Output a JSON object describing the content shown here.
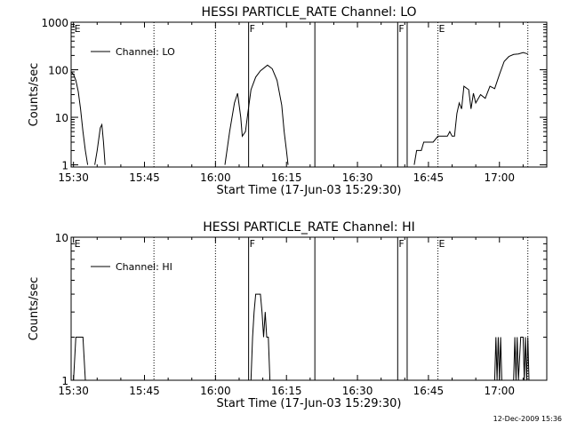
{
  "chart_data": [
    {
      "type": "line",
      "title": "HESSI PARTICLE_RATE Channel: LO",
      "xlabel": "Start Time (17-Jun-03 15:29:30)",
      "ylabel": "Counts/sec",
      "y_scale": "log",
      "ylim": [
        0.9,
        1000
      ],
      "xlim": [
        "15:29:30",
        "17:10:00"
      ],
      "x_ticks": [
        "15:30",
        "15:45",
        "16:00",
        "16:15",
        "16:30",
        "16:45",
        "17:00"
      ],
      "y_ticks": [
        {
          "value": 1,
          "label": "1"
        },
        {
          "value": 10,
          "label": "10"
        },
        {
          "value": 100,
          "label": "100"
        },
        {
          "value": 1000,
          "label": "1000"
        }
      ],
      "legend": {
        "label": "Channel: LO",
        "placement": "top-left"
      },
      "grid": false,
      "vertical_markers": [
        {
          "time": "16:07:00",
          "style": "solid",
          "label": "F"
        },
        {
          "time": "16:21:00",
          "style": "solid",
          "label": ""
        },
        {
          "time": "16:38:30",
          "style": "solid",
          "label": "F"
        },
        {
          "time": "16:40:30",
          "style": "solid",
          "label": ""
        },
        {
          "time": "15:30:00",
          "style": "none",
          "label": "E"
        },
        {
          "time": "15:47:00",
          "style": "dotted",
          "label": ""
        },
        {
          "time": "16:00:00",
          "style": "dotted",
          "label": ""
        },
        {
          "time": "16:47:00",
          "style": "dotted",
          "label": "E"
        },
        {
          "time": "17:06:00",
          "style": "dotted",
          "label": ""
        }
      ],
      "series": [
        {
          "name": "Channel: LO",
          "segments": [
            [
              [
                "15:29:30",
                90
              ],
              [
                "15:30:00",
                80
              ],
              [
                "15:30:30",
                60
              ],
              [
                "15:31:00",
                35
              ],
              [
                "15:31:30",
                15
              ],
              [
                "15:32:00",
                5
              ],
              [
                "15:32:30",
                2
              ],
              [
                "15:33:00",
                1
              ]
            ],
            [
              [
                "15:34:30",
                1
              ],
              [
                "15:35:00",
                2
              ],
              [
                "15:35:40",
                6
              ],
              [
                "15:36:00",
                7
              ],
              [
                "15:36:20",
                3
              ],
              [
                "15:36:40",
                1
              ]
            ],
            [
              [
                "16:02:00",
                1
              ],
              [
                "16:03:00",
                5
              ],
              [
                "16:04:00",
                20
              ],
              [
                "16:04:40",
                32
              ],
              [
                "16:05:20",
                10
              ],
              [
                "16:05:40",
                4
              ],
              [
                "16:06:20",
                5
              ],
              [
                "16:06:50",
                12
              ],
              [
                "16:07:30",
                38
              ],
              [
                "16:08:30",
                70
              ],
              [
                "16:09:30",
                95
              ],
              [
                "16:11:00",
                125
              ],
              [
                "16:12:00",
                105
              ],
              [
                "16:13:00",
                60
              ],
              [
                "16:14:00",
                18
              ],
              [
                "16:14:30",
                5
              ],
              [
                "16:15:00",
                2
              ],
              [
                "16:15:20",
                1
              ]
            ],
            [
              [
                "16:42:00",
                1
              ],
              [
                "16:42:30",
                2
              ],
              [
                "16:43:30",
                2
              ],
              [
                "16:44:00",
                3
              ],
              [
                "16:46:00",
                3
              ],
              [
                "16:47:00",
                4
              ],
              [
                "16:49:00",
                4
              ],
              [
                "16:49:30",
                5
              ],
              [
                "16:50:00",
                4
              ],
              [
                "16:50:30",
                4
              ],
              [
                "16:51:00",
                12
              ],
              [
                "16:51:30",
                20
              ],
              [
                "16:52:00",
                15
              ],
              [
                "16:52:30",
                45
              ],
              [
                "16:53:30",
                38
              ],
              [
                "16:54:00",
                15
              ],
              [
                "16:54:30",
                32
              ],
              [
                "16:55:00",
                20
              ],
              [
                "16:56:00",
                30
              ],
              [
                "16:57:00",
                25
              ],
              [
                "16:58:00",
                45
              ],
              [
                "16:59:00",
                40
              ],
              [
                "17:00:00",
                80
              ],
              [
                "17:01:00",
                150
              ],
              [
                "17:02:00",
                190
              ],
              [
                "17:03:00",
                210
              ],
              [
                "17:04:00",
                215
              ],
              [
                "17:05:00",
                230
              ],
              [
                "17:06:00",
                215
              ]
            ]
          ]
        }
      ]
    },
    {
      "type": "line",
      "title": "HESSI PARTICLE_RATE Channel: HI",
      "xlabel": "Start Time (17-Jun-03 15:29:30)",
      "ylabel": "Counts/sec",
      "y_scale": "log",
      "ylim": [
        1,
        10
      ],
      "xlim": [
        "15:29:30",
        "17:10:00"
      ],
      "x_ticks": [
        "15:30",
        "15:45",
        "16:00",
        "16:15",
        "16:30",
        "16:45",
        "17:00"
      ],
      "y_ticks": [
        {
          "value": 1,
          "label": "1"
        },
        {
          "value": 10,
          "label": "10"
        }
      ],
      "legend": {
        "label": "Channel: HI",
        "placement": "top-left"
      },
      "grid": false,
      "vertical_markers": [
        {
          "time": "16:07:00",
          "style": "solid",
          "label": "F"
        },
        {
          "time": "16:21:00",
          "style": "solid",
          "label": ""
        },
        {
          "time": "16:38:30",
          "style": "solid",
          "label": "F"
        },
        {
          "time": "16:40:30",
          "style": "solid",
          "label": ""
        },
        {
          "time": "15:30:00",
          "style": "none",
          "label": "E"
        },
        {
          "time": "15:47:00",
          "style": "dotted",
          "label": ""
        },
        {
          "time": "16:00:00",
          "style": "dotted",
          "label": ""
        },
        {
          "time": "16:47:00",
          "style": "dotted",
          "label": "E"
        },
        {
          "time": "17:06:00",
          "style": "dotted",
          "label": ""
        }
      ],
      "series": [
        {
          "name": "Channel: HI",
          "segments": [
            [
              [
                "15:30:00",
                1
              ],
              [
                "15:30:30",
                2
              ],
              [
                "15:32:00",
                2
              ],
              [
                "15:32:30",
                1
              ]
            ],
            [
              [
                "16:07:30",
                1
              ],
              [
                "16:07:50",
                2
              ],
              [
                "16:08:10",
                3
              ],
              [
                "16:08:30",
                4
              ],
              [
                "16:09:30",
                4
              ],
              [
                "16:09:50",
                3
              ],
              [
                "16:10:10",
                2
              ],
              [
                "16:10:30",
                3
              ],
              [
                "16:10:50",
                2
              ],
              [
                "16:11:10",
                2
              ],
              [
                "16:11:30",
                1
              ]
            ],
            [
              [
                "16:59:00",
                1
              ],
              [
                "16:59:15",
                2
              ],
              [
                "16:59:30",
                1
              ],
              [
                "16:59:45",
                2
              ],
              [
                "17:00:00",
                1
              ],
              [
                "17:00:15",
                2
              ],
              [
                "17:00:30",
                1
              ]
            ],
            [
              [
                "17:03:00",
                1
              ],
              [
                "17:03:15",
                2
              ],
              [
                "17:03:30",
                1
              ],
              [
                "17:03:45",
                2
              ],
              [
                "17:04:00",
                1
              ],
              [
                "17:04:30",
                2
              ],
              [
                "17:05:00",
                2
              ],
              [
                "17:05:15",
                1
              ],
              [
                "17:05:30",
                2
              ],
              [
                "17:05:45",
                1
              ],
              [
                "17:06:00",
                2
              ],
              [
                "17:06:15",
                1
              ]
            ]
          ]
        }
      ]
    }
  ],
  "footer": {
    "timestamp": "12-Dec-2009 15:36"
  }
}
